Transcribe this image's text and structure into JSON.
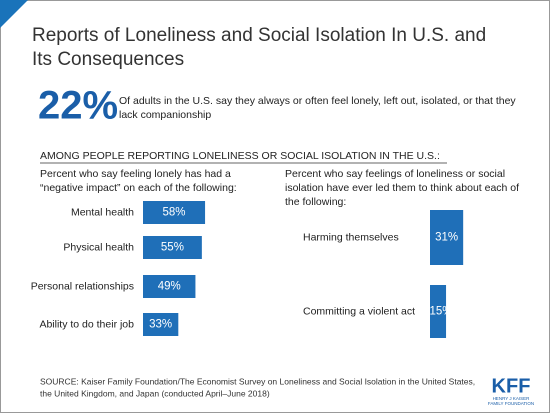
{
  "title": [
    "Reports of Loneliness and Social Isolation In U.S. and",
    "Its Consequences"
  ],
  "stat": "22%",
  "stat_text": [
    "Of adults in the U.S. say they always or often feel lonely, left out, isolated, or that they",
    "lack companionship"
  ],
  "section_heading": "AMONG PEOPLE REPORTING LONELINESS OR SOCIAL ISOLATION IN THE U.S.:",
  "chart_data": [
    {
      "type": "bar",
      "subtitle": [
        "Percent who say feeling lonely has had a",
        "“negative impact” on each of the following:"
      ],
      "categories": [
        "Mental health",
        "Physical health",
        "Personal relationships",
        "Ability to do their job"
      ],
      "values": [
        58,
        55,
        49,
        33
      ],
      "value_labels": [
        "58%",
        "55%",
        "49%",
        "33%"
      ],
      "color": "#1f6fb8"
    },
    {
      "type": "bar",
      "subtitle": [
        "Percent who say feelings of loneliness or social",
        "isolation have ever led them to think about each of",
        "the following:"
      ],
      "categories": [
        "Harming themselves",
        "Committing a violent act"
      ],
      "values": [
        31,
        15
      ],
      "value_labels": [
        "31%",
        "15%"
      ],
      "color": "#1f6fb8"
    }
  ],
  "source": [
    "SOURCE: Kaiser Family Foundation/The Economist Survey on Loneliness and Social Isolation in the United States,",
    "the United Kingdom, and Japan (conducted April–June 2018)"
  ],
  "logo": {
    "name": "KFF",
    "tagline": [
      "HENRY J KAISER",
      "FAMILY FOUNDATION"
    ]
  }
}
